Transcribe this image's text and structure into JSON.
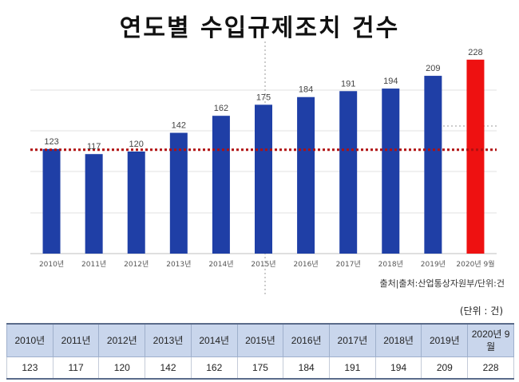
{
  "chart_data": {
    "type": "bar",
    "title": "연도별 수입규제조치 건수",
    "categories": [
      "2010년",
      "2011년",
      "2012년",
      "2013년",
      "2014년",
      "2015년",
      "2016년",
      "2017년",
      "2018년",
      "2019년",
      "2020년 9월"
    ],
    "values": [
      123,
      117,
      120,
      142,
      162,
      175,
      184,
      191,
      194,
      209,
      228
    ],
    "bar_colors": [
      "#1f3fa6",
      "#1f3fa6",
      "#1f3fa6",
      "#1f3fa6",
      "#1f3fa6",
      "#1f3fa6",
      "#1f3fa6",
      "#1f3fa6",
      "#1f3fa6",
      "#1f3fa6",
      "#ee1111"
    ],
    "reference_line_value": 123,
    "reference_line_color": "#b01010",
    "ylim": [
      0,
      240
    ],
    "grid": true,
    "source": "출처|출처:산업통상자원부/단위:건"
  },
  "table": {
    "unit": "(단위 : 건)",
    "headers": [
      "2010년",
      "2011년",
      "2012년",
      "2013년",
      "2014년",
      "2015년",
      "2016년",
      "2017년",
      "2018년",
      "2019년",
      "2020년 9월"
    ],
    "values": [
      "123",
      "117",
      "120",
      "142",
      "162",
      "175",
      "184",
      "191",
      "194",
      "209",
      "228"
    ]
  }
}
